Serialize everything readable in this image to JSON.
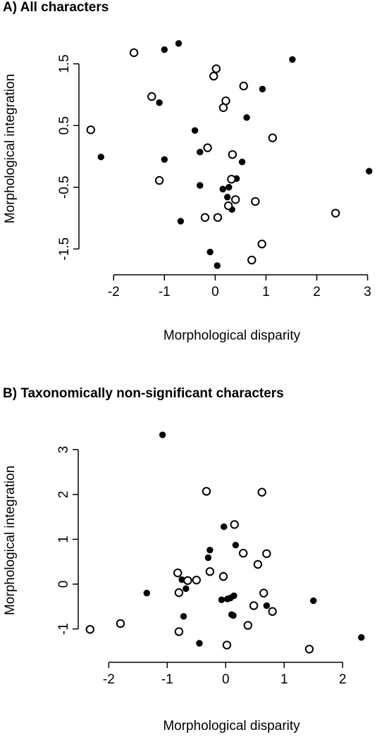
{
  "chart_data": [
    {
      "type": "scatter",
      "title": "A) All characters",
      "xlabel": "Morphological disparity",
      "ylabel": "Morphological integration",
      "xlim": [
        -2.6,
        3.2
      ],
      "ylim": [
        -1.85,
        2.1
      ],
      "xticks": [
        -2,
        -1,
        0,
        1,
        2,
        3
      ],
      "yticks": [
        1.5,
        0.5,
        -0.5,
        -1.5
      ],
      "grid": false,
      "series": [
        {
          "marker": "filled-circle",
          "color": "#000000",
          "points": [
            [
              -0.72,
              1.83
            ],
            [
              -1.0,
              1.73
            ],
            [
              1.52,
              1.57
            ],
            [
              0.93,
              1.09
            ],
            [
              -1.1,
              0.87
            ],
            [
              0.62,
              0.63
            ],
            [
              -0.4,
              0.42
            ],
            [
              -0.3,
              0.07
            ],
            [
              -2.25,
              -0.01
            ],
            [
              -1.0,
              -0.05
            ],
            [
              0.53,
              -0.09
            ],
            [
              0.42,
              -0.36
            ],
            [
              -0.3,
              -0.47
            ],
            [
              0.27,
              -0.5
            ],
            [
              0.15,
              -0.53
            ],
            [
              0.24,
              -0.66
            ],
            [
              0.33,
              -0.86
            ],
            [
              -0.68,
              -1.05
            ],
            [
              3.03,
              -0.24
            ],
            [
              -0.1,
              -1.55
            ],
            [
              0.04,
              -1.77
            ]
          ]
        },
        {
          "marker": "open-circle",
          "color": "#000000",
          "points": [
            [
              -1.6,
              1.68
            ],
            [
              0.02,
              1.42
            ],
            [
              -0.03,
              1.3
            ],
            [
              0.56,
              1.14
            ],
            [
              -1.25,
              0.97
            ],
            [
              0.21,
              0.9
            ],
            [
              0.16,
              0.79
            ],
            [
              -2.45,
              0.43
            ],
            [
              1.13,
              0.3
            ],
            [
              -0.15,
              0.14
            ],
            [
              0.34,
              0.03
            ],
            [
              0.32,
              -0.37
            ],
            [
              -1.1,
              -0.39
            ],
            [
              0.4,
              -0.7
            ],
            [
              0.79,
              -0.73
            ],
            [
              0.26,
              -0.8
            ],
            [
              -0.2,
              -0.99
            ],
            [
              0.05,
              -0.99
            ],
            [
              2.37,
              -0.92
            ],
            [
              0.92,
              -1.42
            ],
            [
              0.72,
              -1.68
            ]
          ]
        }
      ]
    },
    {
      "type": "scatter",
      "title": "B) Taxonomically non-significant characters",
      "xlabel": "Morphological disparity",
      "ylabel": "Morphological integration",
      "xlim": [
        -2.45,
        2.6
      ],
      "ylim": [
        -1.65,
        3.6
      ],
      "xticks": [
        -2,
        -1,
        0,
        1,
        2
      ],
      "yticks": [
        3,
        2,
        1,
        0,
        -1
      ],
      "grid": false,
      "series": [
        {
          "marker": "filled-circle",
          "color": "#000000",
          "points": [
            [
              -1.08,
              3.33
            ],
            [
              -0.03,
              1.28
            ],
            [
              0.17,
              0.87
            ],
            [
              -0.27,
              0.76
            ],
            [
              -0.3,
              0.59
            ],
            [
              -0.75,
              0.1
            ],
            [
              -0.04,
              0.2
            ],
            [
              -0.68,
              -0.1
            ],
            [
              -0.8,
              -0.17
            ],
            [
              -1.35,
              -0.2
            ],
            [
              0.14,
              -0.26
            ],
            [
              0.08,
              -0.31
            ],
            [
              0.03,
              -0.33
            ],
            [
              -0.07,
              -0.35
            ],
            [
              1.5,
              -0.37
            ],
            [
              0.7,
              -0.48
            ],
            [
              0.1,
              -0.68
            ],
            [
              0.13,
              -0.7
            ],
            [
              -0.72,
              -0.72
            ],
            [
              -0.45,
              -1.32
            ],
            [
              2.32,
              -1.19
            ]
          ]
        },
        {
          "marker": "open-circle",
          "color": "#000000",
          "points": [
            [
              -0.33,
              2.07
            ],
            [
              0.62,
              2.05
            ],
            [
              0.15,
              1.33
            ],
            [
              0.7,
              0.68
            ],
            [
              0.3,
              0.69
            ],
            [
              0.55,
              0.44
            ],
            [
              -0.27,
              0.28
            ],
            [
              -0.82,
              0.25
            ],
            [
              -0.04,
              0.17
            ],
            [
              -0.5,
              0.09
            ],
            [
              -0.65,
              0.08
            ],
            [
              -0.8,
              -0.19
            ],
            [
              0.65,
              -0.2
            ],
            [
              0.48,
              -0.48
            ],
            [
              0.8,
              -0.61
            ],
            [
              0.38,
              -0.92
            ],
            [
              -2.32,
              -1.01
            ],
            [
              -1.8,
              -0.88
            ],
            [
              -0.8,
              -1.06
            ],
            [
              0.02,
              -1.36
            ],
            [
              1.43,
              -1.45
            ]
          ]
        }
      ]
    }
  ]
}
